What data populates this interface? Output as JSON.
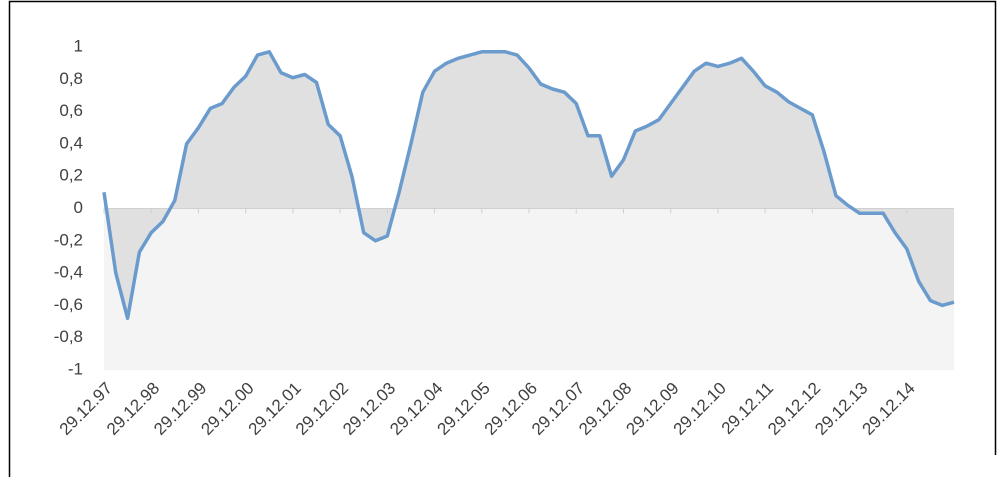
{
  "chart_data": {
    "type": "area-line",
    "categories": [
      "29.12.97",
      null,
      null,
      null,
      "29.12.98",
      null,
      null,
      null,
      "29.12.99",
      null,
      null,
      null,
      "29.12.00",
      null,
      null,
      null,
      "29.12.01",
      null,
      null,
      null,
      "29.12.02",
      null,
      null,
      null,
      "29.12.03",
      null,
      null,
      null,
      "29.12.04",
      null,
      null,
      null,
      "29.12.05",
      null,
      null,
      null,
      "29.12.06",
      null,
      null,
      null,
      "29.12.07",
      null,
      null,
      null,
      "29.12.08",
      null,
      null,
      null,
      "29.12.09",
      null,
      null,
      null,
      "29.12.10",
      null,
      null,
      null,
      "29.12.11",
      null,
      null,
      null,
      "29.12.12",
      null,
      null,
      null,
      "29.12.13",
      null,
      null,
      null,
      "29.12.14",
      null,
      null,
      null,
      null
    ],
    "values": [
      0.1,
      -0.4,
      -0.68,
      -0.27,
      -0.15,
      -0.08,
      0.05,
      0.4,
      0.5,
      0.62,
      0.65,
      0.75,
      0.82,
      0.95,
      0.97,
      0.84,
      0.81,
      0.83,
      0.78,
      0.52,
      0.45,
      0.2,
      -0.15,
      -0.2,
      -0.17,
      0.1,
      0.4,
      0.72,
      0.85,
      0.9,
      0.93,
      0.95,
      0.97,
      0.97,
      0.97,
      0.95,
      0.87,
      0.77,
      0.74,
      0.72,
      0.65,
      0.45,
      0.45,
      0.2,
      0.3,
      0.48,
      0.51,
      0.55,
      0.65,
      0.75,
      0.85,
      0.9,
      0.88,
      0.9,
      0.93,
      0.85,
      0.76,
      0.72,
      0.66,
      0.62,
      0.58,
      0.35,
      0.08,
      0.02,
      -0.03,
      -0.03,
      -0.03,
      -0.15,
      -0.25,
      -0.45,
      -0.57,
      -0.6,
      -0.58
    ],
    "color": "#6b9bcd",
    "area_color": "#e0e0e0",
    "negative_background": "#f4f4f4",
    "ylim": [
      -1,
      1
    ],
    "yticks": [
      -1,
      {
        "value": -0.8,
        "label": "-0,8"
      },
      {
        "value": -0.6,
        "label": "-0,6"
      },
      {
        "value": -0.4,
        "label": "-0,4"
      },
      {
        "value": -0.2,
        "label": "-0,2"
      },
      0,
      {
        "value": 0.2,
        "label": "0,2"
      },
      {
        "value": 0.4,
        "label": "0,4"
      },
      {
        "value": 0.6,
        "label": "0,6"
      },
      {
        "value": 0.8,
        "label": "0,8"
      },
      1
    ]
  }
}
